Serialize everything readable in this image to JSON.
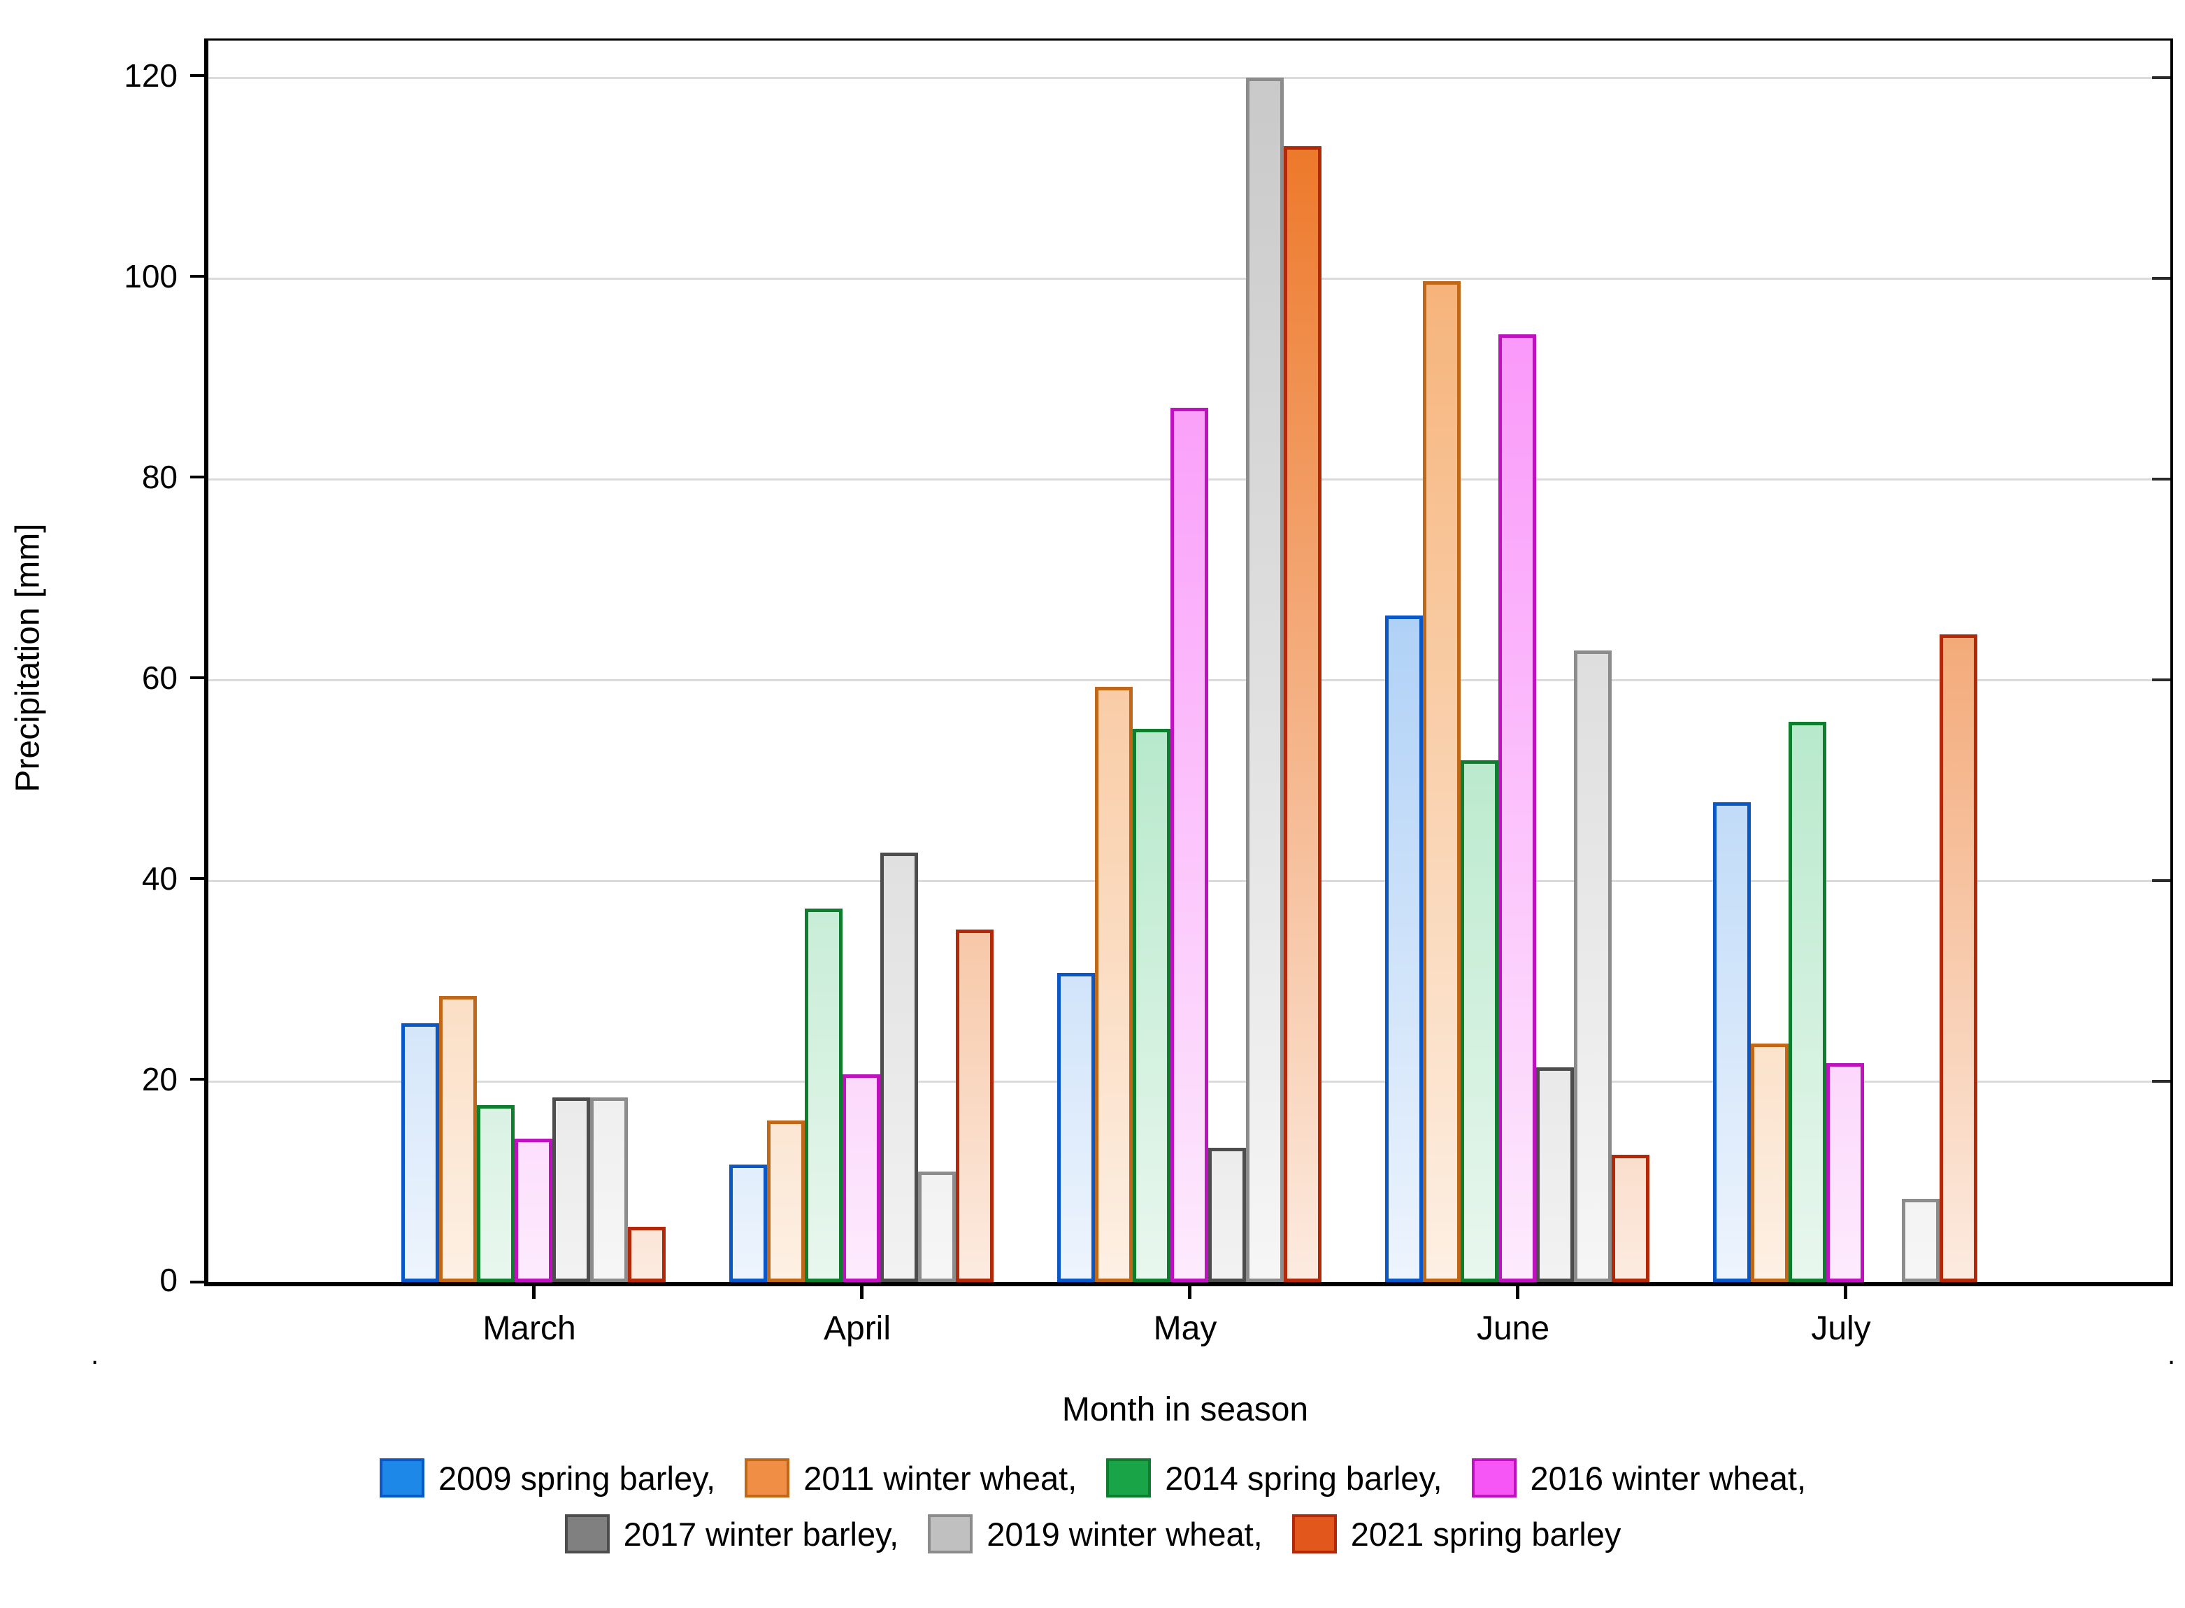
{
  "chart_data": {
    "type": "bar",
    "title": "",
    "xlabel": "Month in season",
    "ylabel": "Precipitation [mm]",
    "categories": [
      "March",
      "April",
      "May",
      "June",
      "July"
    ],
    "yticks": [
      0,
      20,
      40,
      60,
      80,
      100,
      120
    ],
    "ylim": [
      0,
      123.7
    ],
    "grid": true,
    "legend_position": "bottom",
    "gridline_color": "#DBDBDB",
    "series": [
      {
        "name": "2009 spring barley",
        "legend_label": "2009 spring barley,",
        "border_color": "#0A58C8",
        "fill_top": "#7FB5F0",
        "fill_bottom": "#EDF4FD",
        "legend_fill": "#1E88E8",
        "values": [
          25.8,
          11.7,
          30.8,
          66.4,
          47.8
        ]
      },
      {
        "name": "2011 winter wheat",
        "legend_label": "2011 winter wheat,",
        "border_color": "#C06818",
        "fill_top": "#F5A866",
        "fill_bottom": "#FDF0E4",
        "legend_fill": "#EF8E44",
        "values": [
          28.5,
          16.1,
          59.3,
          99.7,
          23.8
        ]
      },
      {
        "name": "2014 spring barley",
        "legend_label": "2014 spring barley,",
        "border_color": "#0E7D2D",
        "fill_top": "#7FD8A5",
        "fill_bottom": "#E9F7EE",
        "legend_fill": "#19A448",
        "values": [
          17.6,
          37.2,
          55.1,
          52.0,
          55.8
        ]
      },
      {
        "name": "2016 winter wheat",
        "legend_label": "2016 winter wheat,",
        "border_color": "#BE12BE",
        "fill_top": "#F983F9",
        "fill_bottom": "#FDEBFD",
        "legend_fill": "#F556F5",
        "values": [
          14.3,
          20.7,
          87.1,
          94.4,
          21.8
        ]
      },
      {
        "name": "2017 winter barley",
        "legend_label": "2017 winter barley,",
        "border_color": "#4D4D4D",
        "fill_top": "#BFBFBF",
        "fill_bottom": "#F2F2F2",
        "legend_fill": "#808080",
        "values": [
          18.4,
          42.8,
          13.4,
          21.4,
          0
        ]
      },
      {
        "name": "2019 winter wheat",
        "legend_label": "2019 winter wheat,",
        "border_color": "#8C8C8C",
        "fill_top": "#C9C9C9",
        "fill_bottom": "#F6F6F6",
        "legend_fill": "#C0C0C0",
        "values": [
          18.4,
          11.0,
          120.0,
          62.9,
          8.3
        ]
      },
      {
        "name": "2021 spring barley",
        "legend_label": "2021 spring barley",
        "border_color": "#B22808",
        "fill_top": "#EC7220",
        "fill_bottom": "#FCEBE0",
        "legend_fill": "#E2581C",
        "values": [
          5.5,
          35.1,
          113.2,
          12.7,
          64.5
        ]
      }
    ],
    "legend_rows": [
      [
        0,
        1,
        2,
        3
      ],
      [
        4,
        5,
        6
      ]
    ],
    "corner_marks": {
      "left": ".",
      "right": "."
    }
  }
}
